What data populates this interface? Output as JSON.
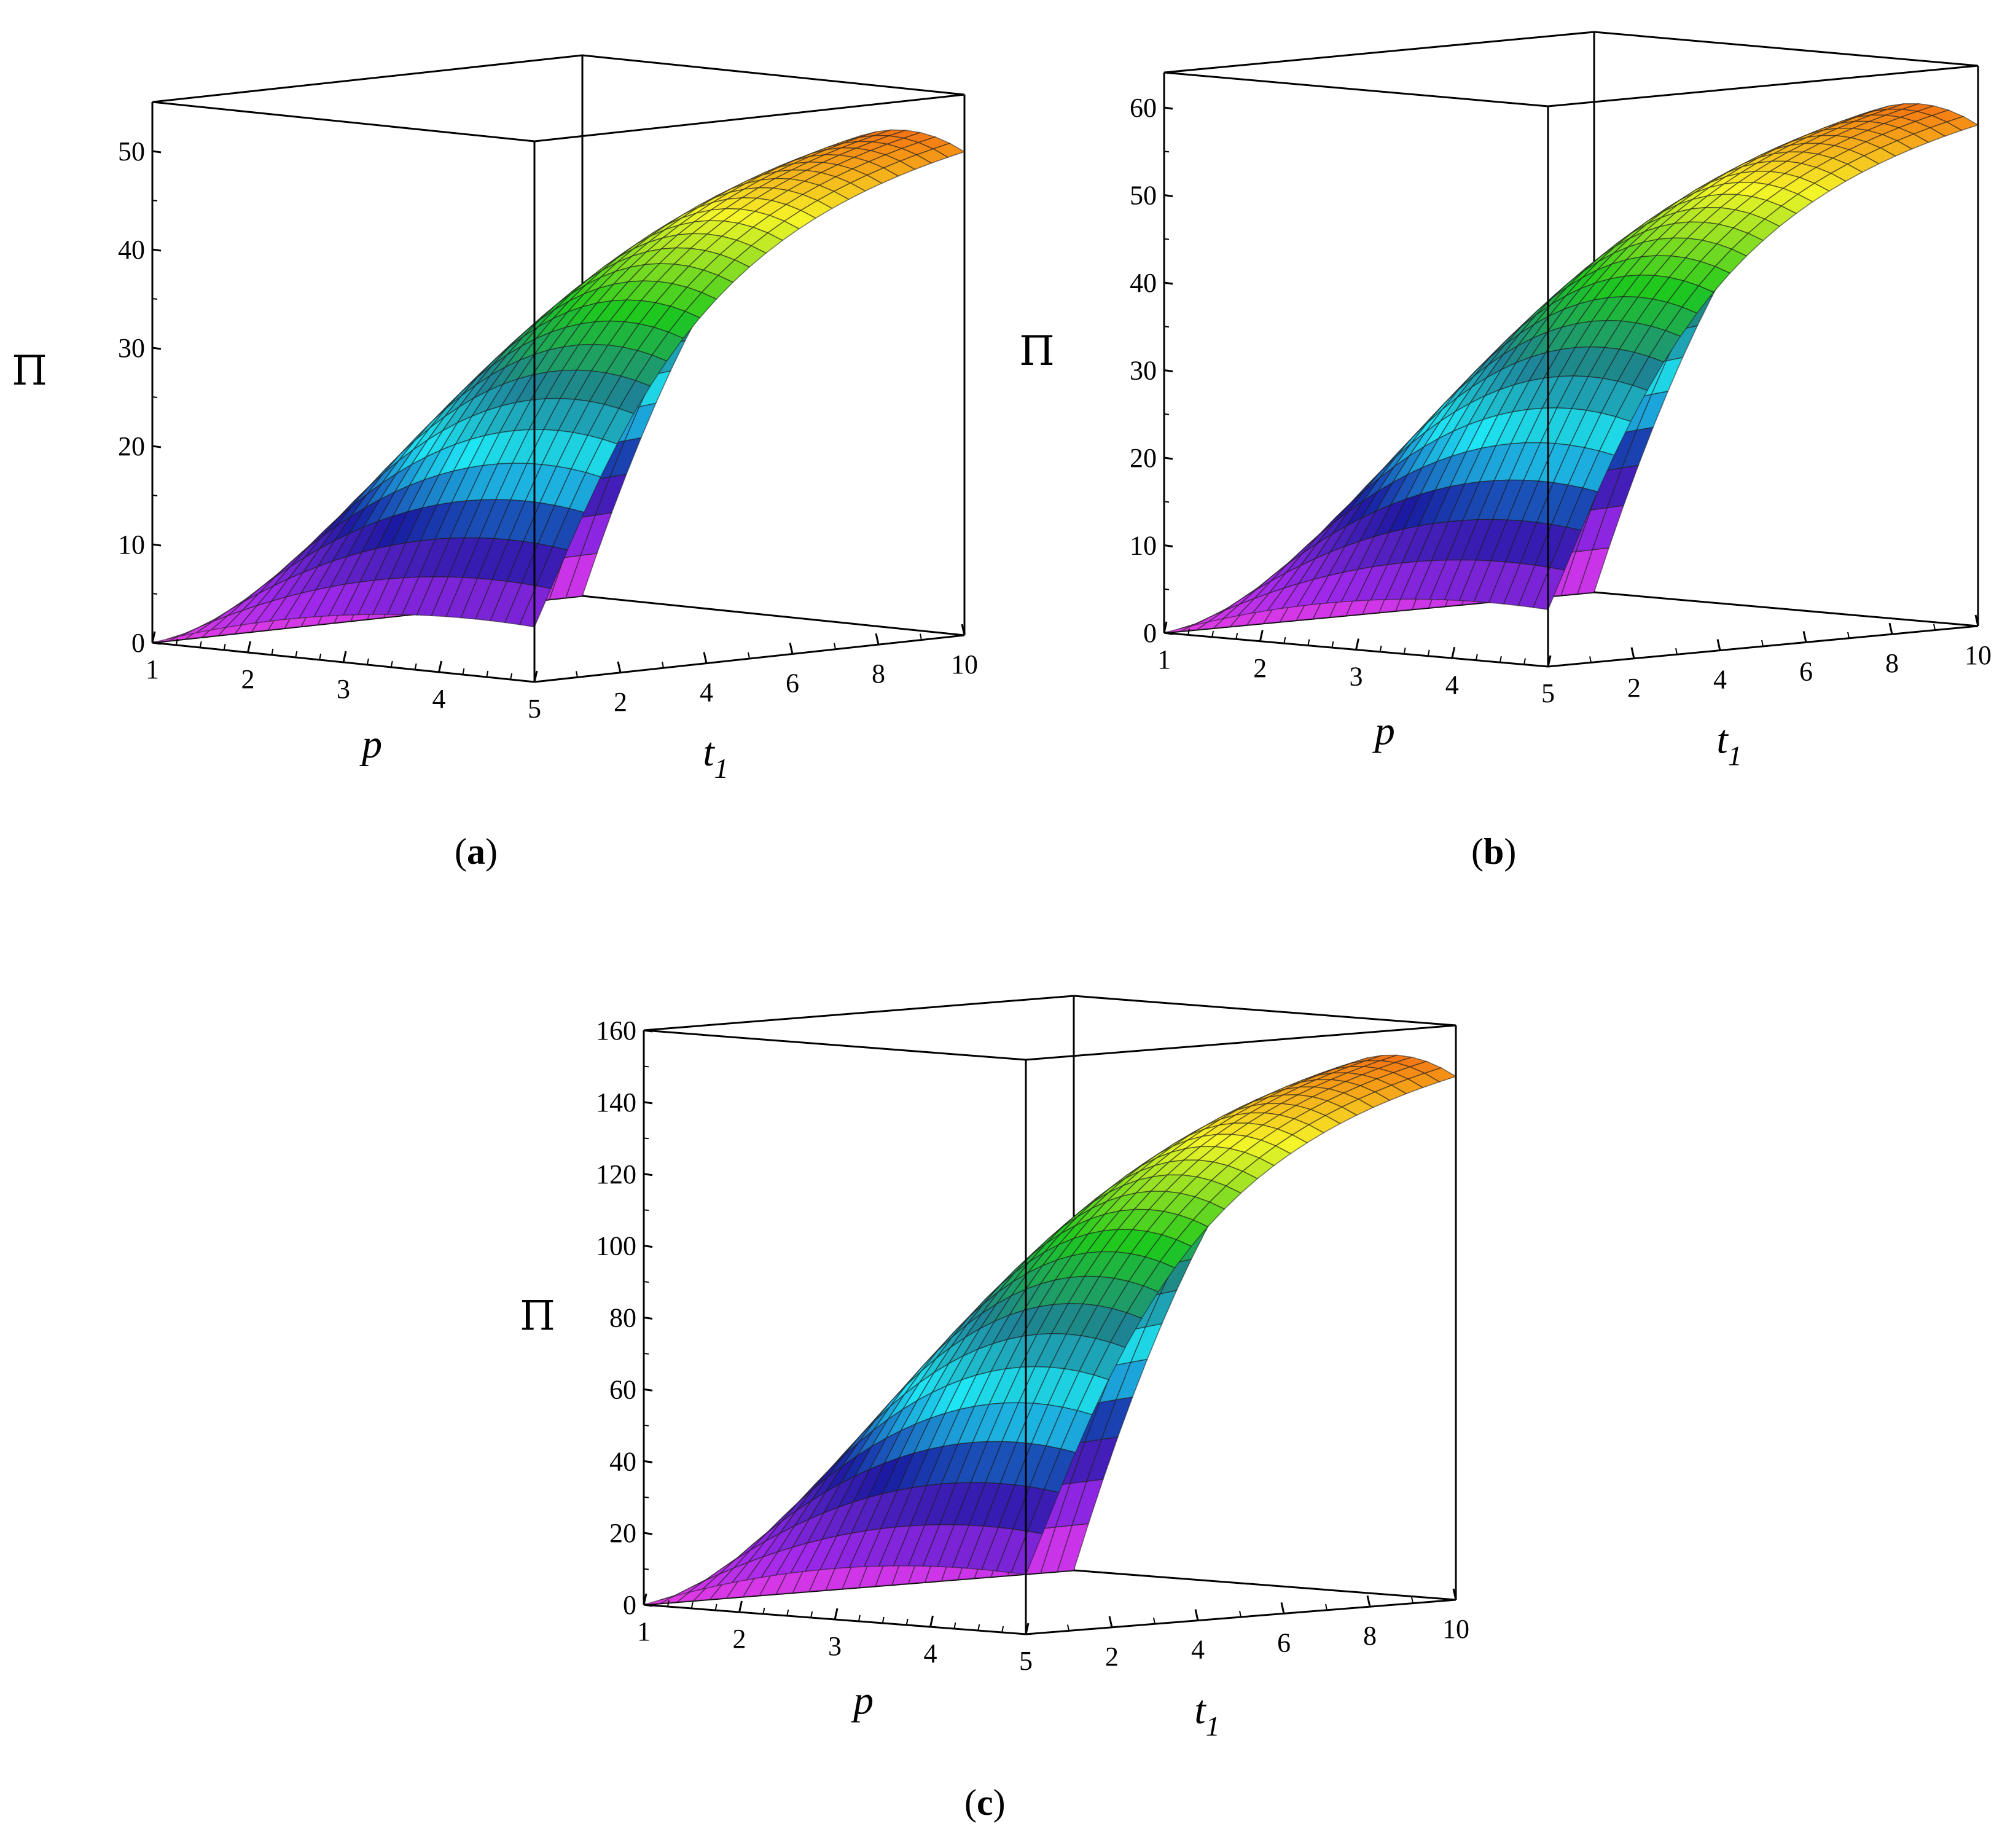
{
  "panels": [
    {
      "label": "a",
      "chart_data": {
        "type": "surface3d",
        "x": {
          "label": "p",
          "range": [
            1,
            5
          ],
          "ticks": [
            1,
            2,
            3,
            4,
            5
          ]
        },
        "y": {
          "label": "t",
          "subscript": "1",
          "range": [
            0,
            10
          ],
          "ticks": [
            2,
            4,
            6,
            8,
            10
          ]
        },
        "z": {
          "label": "Π",
          "range": [
            0,
            55
          ],
          "ticks": [
            0,
            10,
            20,
            30,
            40,
            50
          ]
        },
        "surface": {
          "zmax": 55,
          "p_peak": 4.4,
          "y_scale": 4.5,
          "p_low": 2.2,
          "p_high": 4.2,
          "base_low": 0.35,
          "y_sat": 1.6
        },
        "colormap": "rainbow"
      }
    },
    {
      "label": "b",
      "chart_data": {
        "type": "surface3d",
        "x": {
          "label": "p",
          "range": [
            1,
            5
          ],
          "ticks": [
            1,
            2,
            3,
            4,
            5
          ]
        },
        "y": {
          "label": "t",
          "subscript": "1",
          "range": [
            0,
            10
          ],
          "ticks": [
            2,
            4,
            6,
            8,
            10
          ]
        },
        "z": {
          "label": "Π",
          "range": [
            0,
            64
          ],
          "ticks": [
            0,
            10,
            20,
            30,
            40,
            50,
            60
          ]
        },
        "surface": {
          "zmax": 64,
          "p_peak": 4.4,
          "y_scale": 4.5,
          "p_low": 2.2,
          "p_high": 4.2,
          "base_low": 0.35,
          "y_sat": 1.6
        },
        "colormap": "rainbow"
      }
    },
    {
      "label": "c",
      "chart_data": {
        "type": "surface3d",
        "x": {
          "label": "p",
          "range": [
            1,
            5
          ],
          "ticks": [
            1,
            2,
            3,
            4,
            5
          ]
        },
        "y": {
          "label": "t",
          "subscript": "1",
          "range": [
            0,
            10
          ],
          "ticks": [
            2,
            4,
            6,
            8,
            10
          ]
        },
        "z": {
          "label": "Π",
          "range": [
            0,
            160
          ],
          "ticks": [
            0,
            20,
            40,
            60,
            80,
            100,
            120,
            140,
            160
          ]
        },
        "surface": {
          "zmax": 163,
          "p_peak": 4.4,
          "y_scale": 4.5,
          "p_low": 2.2,
          "p_high": 4.2,
          "base_low": 0.35,
          "y_sat": 1.6
        },
        "colormap": "rainbow"
      }
    }
  ]
}
